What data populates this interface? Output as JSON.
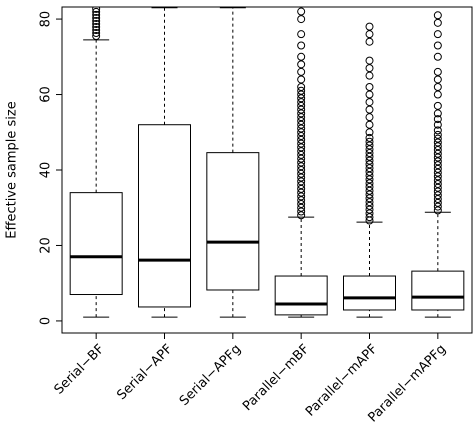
{
  "chart_data": {
    "type": "box",
    "y_label": "Effective sample size",
    "categories": [
      "Serial−BF",
      "Serial−APF",
      "Serial−APFg",
      "Parallel−mBF",
      "Parallel−mAPF",
      "Parallel−mAPFg"
    ],
    "boxes": [
      {
        "low": 1,
        "q1": 7,
        "median": 17,
        "q3": 34,
        "high": 74.5,
        "outliers": [
          75.5,
          76.3,
          77.1,
          77.9,
          78.7,
          79.5,
          80.3,
          81.1,
          81.9,
          82.7
        ]
      },
      {
        "low": 1,
        "q1": 3.7,
        "median": 16.1,
        "q3": 52,
        "high": 83,
        "outliers": []
      },
      {
        "low": 1,
        "q1": 8.2,
        "median": 20.9,
        "q3": 44.6,
        "high": 83,
        "outliers": []
      },
      {
        "low": 1,
        "q1": 1.6,
        "median": 4.5,
        "q3": 11.9,
        "high": 27.5,
        "outliers": [
          28,
          29,
          30,
          31,
          32,
          33,
          34,
          35,
          36,
          37,
          38,
          39,
          40,
          41,
          42,
          43,
          44,
          45,
          46,
          47,
          48,
          49,
          50,
          51,
          52,
          53,
          54,
          55,
          56,
          57,
          58,
          59,
          60,
          61,
          62,
          64,
          66,
          68,
          70,
          73,
          76,
          80,
          82
        ]
      },
      {
        "low": 1,
        "q1": 2.9,
        "median": 6.1,
        "q3": 11.9,
        "high": 26.2,
        "outliers": [
          26.6,
          27.5,
          28.5,
          29.5,
          30.5,
          31.5,
          32.5,
          33.5,
          34.5,
          35.5,
          36.5,
          37.5,
          38.5,
          39.5,
          40.5,
          41.5,
          42.5,
          43.5,
          44.5,
          45.5,
          46.5,
          47.5,
          48.5,
          50,
          52,
          54,
          56,
          58,
          60,
          62,
          65,
          67,
          69,
          74,
          76,
          78
        ]
      },
      {
        "low": 1,
        "q1": 2.9,
        "median": 6.3,
        "q3": 13.2,
        "high": 28.8,
        "outliers": [
          29.3,
          30.3,
          31.3,
          32.3,
          33.3,
          34.3,
          35.3,
          36.3,
          37.3,
          38.3,
          39.3,
          40.3,
          41.3,
          42.3,
          43.3,
          44.3,
          45.3,
          46.3,
          47.3,
          48.3,
          49.3,
          50.5,
          52,
          53.5,
          55,
          57,
          60,
          62,
          64,
          66,
          70,
          73,
          76,
          79,
          81
        ]
      }
    ],
    "color": "#000000",
    "ylim": [
      -3.2,
      83.2
    ],
    "yticks": [
      0,
      20,
      40,
      60,
      80
    ]
  }
}
